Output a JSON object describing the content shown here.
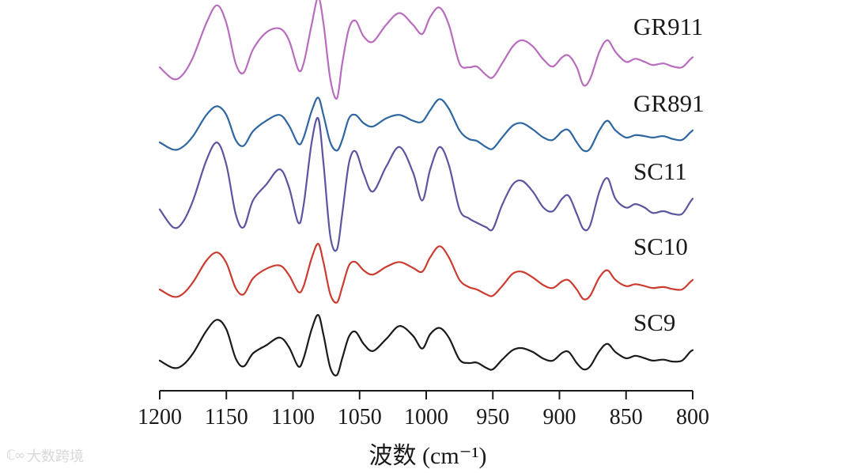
{
  "chart_data": {
    "type": "line",
    "xlabel": "波数 (cm⁻¹)",
    "ylabel": "",
    "title": "",
    "xlim": [
      1200,
      800
    ],
    "x_reversed": true,
    "x_ticks": [
      1200,
      1150,
      1100,
      1050,
      1000,
      950,
      900,
      850,
      800
    ],
    "y_axis_shown": false,
    "grid": false,
    "legend": "inline-right",
    "series": [
      {
        "name": "GR911",
        "color": "#b86cbd",
        "offset": 4,
        "scale": 1.0,
        "points": [
          [
            1200,
            0.05
          ],
          [
            1190,
            -0.1
          ],
          [
            1183,
            -0.05
          ],
          [
            1175,
            0.18
          ],
          [
            1165,
            0.62
          ],
          [
            1157,
            0.85
          ],
          [
            1150,
            0.62
          ],
          [
            1143,
            0.1
          ],
          [
            1137,
            -0.02
          ],
          [
            1130,
            0.28
          ],
          [
            1120,
            0.5
          ],
          [
            1110,
            0.55
          ],
          [
            1103,
            0.4
          ],
          [
            1096,
            0.02
          ],
          [
            1092,
            0.1
          ],
          [
            1086,
            0.6
          ],
          [
            1081,
            0.95
          ],
          [
            1077,
            0.6
          ],
          [
            1072,
            -0.1
          ],
          [
            1067,
            -0.35
          ],
          [
            1063,
            0.1
          ],
          [
            1058,
            0.55
          ],
          [
            1053,
            0.65
          ],
          [
            1047,
            0.45
          ],
          [
            1040,
            0.38
          ],
          [
            1030,
            0.6
          ],
          [
            1020,
            0.75
          ],
          [
            1010,
            0.6
          ],
          [
            1003,
            0.48
          ],
          [
            997,
            0.7
          ],
          [
            990,
            0.82
          ],
          [
            983,
            0.6
          ],
          [
            975,
            0.1
          ],
          [
            968,
            0.05
          ],
          [
            962,
            0.06
          ],
          [
            955,
            -0.05
          ],
          [
            950,
            -0.08
          ],
          [
            943,
            0.1
          ],
          [
            935,
            0.32
          ],
          [
            928,
            0.4
          ],
          [
            920,
            0.32
          ],
          [
            912,
            0.15
          ],
          [
            905,
            0.06
          ],
          [
            898,
            0.18
          ],
          [
            893,
            0.2
          ],
          [
            887,
            0.05
          ],
          [
            882,
            -0.18
          ],
          [
            877,
            -0.1
          ],
          [
            870,
            0.25
          ],
          [
            864,
            0.4
          ],
          [
            858,
            0.25
          ],
          [
            850,
            0.12
          ],
          [
            843,
            0.16
          ],
          [
            836,
            0.12
          ],
          [
            830,
            0.08
          ],
          [
            822,
            0.1
          ],
          [
            815,
            0.06
          ],
          [
            808,
            0.05
          ],
          [
            802,
            0.15
          ],
          [
            800,
            0.18
          ]
        ]
      },
      {
        "name": "GR891",
        "color": "#2e66a0",
        "offset": 3,
        "scale": 0.62,
        "points": [
          [
            1200,
            0.05
          ],
          [
            1190,
            -0.1
          ],
          [
            1183,
            -0.05
          ],
          [
            1175,
            0.18
          ],
          [
            1165,
            0.62
          ],
          [
            1157,
            0.8
          ],
          [
            1150,
            0.62
          ],
          [
            1143,
            0.1
          ],
          [
            1137,
            -0.02
          ],
          [
            1130,
            0.28
          ],
          [
            1120,
            0.5
          ],
          [
            1110,
            0.62
          ],
          [
            1103,
            0.4
          ],
          [
            1096,
            0.02
          ],
          [
            1092,
            0.15
          ],
          [
            1086,
            0.7
          ],
          [
            1081,
            0.98
          ],
          [
            1077,
            0.6
          ],
          [
            1072,
            0.05
          ],
          [
            1067,
            -0.12
          ],
          [
            1063,
            0.1
          ],
          [
            1058,
            0.55
          ],
          [
            1053,
            0.62
          ],
          [
            1047,
            0.45
          ],
          [
            1040,
            0.38
          ],
          [
            1030,
            0.55
          ],
          [
            1020,
            0.62
          ],
          [
            1010,
            0.5
          ],
          [
            1003,
            0.48
          ],
          [
            997,
            0.72
          ],
          [
            990,
            0.95
          ],
          [
            983,
            0.75
          ],
          [
            975,
            0.3
          ],
          [
            968,
            0.12
          ],
          [
            962,
            0.08
          ],
          [
            955,
            -0.05
          ],
          [
            950,
            -0.08
          ],
          [
            943,
            0.15
          ],
          [
            935,
            0.4
          ],
          [
            928,
            0.45
          ],
          [
            920,
            0.32
          ],
          [
            912,
            0.15
          ],
          [
            905,
            0.1
          ],
          [
            898,
            0.28
          ],
          [
            893,
            0.3
          ],
          [
            887,
            0.05
          ],
          [
            882,
            -0.12
          ],
          [
            877,
            -0.08
          ],
          [
            870,
            0.3
          ],
          [
            864,
            0.5
          ],
          [
            858,
            0.3
          ],
          [
            850,
            0.15
          ],
          [
            843,
            0.2
          ],
          [
            836,
            0.18
          ],
          [
            830,
            0.15
          ],
          [
            822,
            0.18
          ],
          [
            815,
            0.12
          ],
          [
            808,
            0.1
          ],
          [
            802,
            0.25
          ],
          [
            800,
            0.3
          ]
        ]
      },
      {
        "name": "SC11",
        "color": "#5b55a0",
        "offset": 2,
        "scale": 1.15,
        "points": [
          [
            1200,
            0.1
          ],
          [
            1190,
            -0.1
          ],
          [
            1183,
            -0.05
          ],
          [
            1175,
            0.2
          ],
          [
            1165,
            0.65
          ],
          [
            1157,
            0.85
          ],
          [
            1150,
            0.6
          ],
          [
            1143,
            0.05
          ],
          [
            1137,
            -0.1
          ],
          [
            1130,
            0.2
          ],
          [
            1120,
            0.38
          ],
          [
            1110,
            0.55
          ],
          [
            1103,
            0.35
          ],
          [
            1096,
            -0.05
          ],
          [
            1092,
            0.15
          ],
          [
            1086,
            0.85
          ],
          [
            1081,
            1.12
          ],
          [
            1077,
            0.6
          ],
          [
            1072,
            -0.2
          ],
          [
            1067,
            -0.35
          ],
          [
            1063,
            0.05
          ],
          [
            1058,
            0.62
          ],
          [
            1053,
            0.75
          ],
          [
            1047,
            0.5
          ],
          [
            1040,
            0.3
          ],
          [
            1030,
            0.58
          ],
          [
            1020,
            0.8
          ],
          [
            1010,
            0.52
          ],
          [
            1003,
            0.2
          ],
          [
            997,
            0.55
          ],
          [
            990,
            0.8
          ],
          [
            983,
            0.6
          ],
          [
            975,
            0.1
          ],
          [
            968,
            0.0
          ],
          [
            962,
            -0.05
          ],
          [
            955,
            -0.1
          ],
          [
            950,
            -0.12
          ],
          [
            943,
            0.15
          ],
          [
            935,
            0.38
          ],
          [
            928,
            0.42
          ],
          [
            920,
            0.3
          ],
          [
            912,
            0.12
          ],
          [
            905,
            0.08
          ],
          [
            898,
            0.22
          ],
          [
            893,
            0.25
          ],
          [
            887,
            0.05
          ],
          [
            882,
            -0.12
          ],
          [
            877,
            -0.08
          ],
          [
            870,
            0.3
          ],
          [
            864,
            0.45
          ],
          [
            858,
            0.22
          ],
          [
            850,
            0.12
          ],
          [
            843,
            0.16
          ],
          [
            836,
            0.12
          ],
          [
            830,
            0.06
          ],
          [
            822,
            0.08
          ],
          [
            815,
            0.05
          ],
          [
            808,
            0.05
          ],
          [
            802,
            0.18
          ],
          [
            800,
            0.22
          ]
        ]
      },
      {
        "name": "SC10",
        "color": "#cc3b30",
        "offset": 1,
        "scale": 0.62,
        "points": [
          [
            1200,
            0.05
          ],
          [
            1190,
            -0.1
          ],
          [
            1183,
            -0.05
          ],
          [
            1175,
            0.2
          ],
          [
            1165,
            0.65
          ],
          [
            1157,
            0.82
          ],
          [
            1150,
            0.6
          ],
          [
            1143,
            0.08
          ],
          [
            1137,
            -0.05
          ],
          [
            1130,
            0.28
          ],
          [
            1120,
            0.48
          ],
          [
            1110,
            0.55
          ],
          [
            1103,
            0.35
          ],
          [
            1096,
            0.0
          ],
          [
            1092,
            0.12
          ],
          [
            1086,
            0.7
          ],
          [
            1081,
            1.0
          ],
          [
            1077,
            0.6
          ],
          [
            1072,
            -0.05
          ],
          [
            1067,
            -0.22
          ],
          [
            1063,
            0.1
          ],
          [
            1058,
            0.55
          ],
          [
            1053,
            0.62
          ],
          [
            1047,
            0.45
          ],
          [
            1040,
            0.36
          ],
          [
            1030,
            0.52
          ],
          [
            1020,
            0.62
          ],
          [
            1010,
            0.5
          ],
          [
            1003,
            0.42
          ],
          [
            997,
            0.72
          ],
          [
            990,
            0.95
          ],
          [
            983,
            0.72
          ],
          [
            975,
            0.25
          ],
          [
            968,
            0.1
          ],
          [
            962,
            0.05
          ],
          [
            955,
            -0.05
          ],
          [
            950,
            -0.08
          ],
          [
            943,
            0.12
          ],
          [
            935,
            0.38
          ],
          [
            928,
            0.42
          ],
          [
            920,
            0.3
          ],
          [
            912,
            0.14
          ],
          [
            905,
            0.08
          ],
          [
            898,
            0.22
          ],
          [
            893,
            0.24
          ],
          [
            887,
            0.05
          ],
          [
            882,
            -0.15
          ],
          [
            877,
            -0.08
          ],
          [
            870,
            0.3
          ],
          [
            864,
            0.45
          ],
          [
            858,
            0.25
          ],
          [
            850,
            0.12
          ],
          [
            843,
            0.16
          ],
          [
            836,
            0.12
          ],
          [
            830,
            0.08
          ],
          [
            822,
            0.1
          ],
          [
            815,
            0.06
          ],
          [
            808,
            0.05
          ],
          [
            802,
            0.2
          ],
          [
            800,
            0.25
          ]
        ]
      },
      {
        "name": "SC9",
        "color": "#1a1a1a",
        "offset": 0,
        "scale": 0.62,
        "points": [
          [
            1200,
            0.1
          ],
          [
            1190,
            -0.05
          ],
          [
            1183,
            0.0
          ],
          [
            1175,
            0.25
          ],
          [
            1165,
            0.72
          ],
          [
            1157,
            0.95
          ],
          [
            1150,
            0.75
          ],
          [
            1143,
            0.15
          ],
          [
            1137,
            -0.02
          ],
          [
            1130,
            0.25
          ],
          [
            1120,
            0.42
          ],
          [
            1110,
            0.58
          ],
          [
            1103,
            0.38
          ],
          [
            1096,
            -0.02
          ],
          [
            1092,
            0.15
          ],
          [
            1086,
            0.75
          ],
          [
            1081,
            1.05
          ],
          [
            1077,
            0.62
          ],
          [
            1072,
            -0.05
          ],
          [
            1067,
            -0.2
          ],
          [
            1063,
            0.15
          ],
          [
            1058,
            0.6
          ],
          [
            1053,
            0.7
          ],
          [
            1047,
            0.45
          ],
          [
            1040,
            0.3
          ],
          [
            1030,
            0.55
          ],
          [
            1020,
            0.82
          ],
          [
            1010,
            0.62
          ],
          [
            1003,
            0.35
          ],
          [
            997,
            0.65
          ],
          [
            990,
            0.78
          ],
          [
            983,
            0.58
          ],
          [
            975,
            0.12
          ],
          [
            968,
            0.05
          ],
          [
            962,
            0.06
          ],
          [
            955,
            -0.05
          ],
          [
            950,
            -0.08
          ],
          [
            943,
            0.12
          ],
          [
            935,
            0.32
          ],
          [
            928,
            0.36
          ],
          [
            920,
            0.28
          ],
          [
            912,
            0.14
          ],
          [
            905,
            0.1
          ],
          [
            898,
            0.26
          ],
          [
            893,
            0.28
          ],
          [
            887,
            0.05
          ],
          [
            882,
            -0.08
          ],
          [
            877,
            -0.02
          ],
          [
            870,
            0.3
          ],
          [
            864,
            0.45
          ],
          [
            858,
            0.28
          ],
          [
            850,
            0.15
          ],
          [
            843,
            0.2
          ],
          [
            836,
            0.15
          ],
          [
            830,
            0.1
          ],
          [
            822,
            0.12
          ],
          [
            815,
            0.08
          ],
          [
            808,
            0.1
          ],
          [
            802,
            0.28
          ],
          [
            800,
            0.32
          ]
        ]
      }
    ]
  },
  "watermark": {
    "logo": "ℂ∞",
    "text": "大数跨境"
  }
}
